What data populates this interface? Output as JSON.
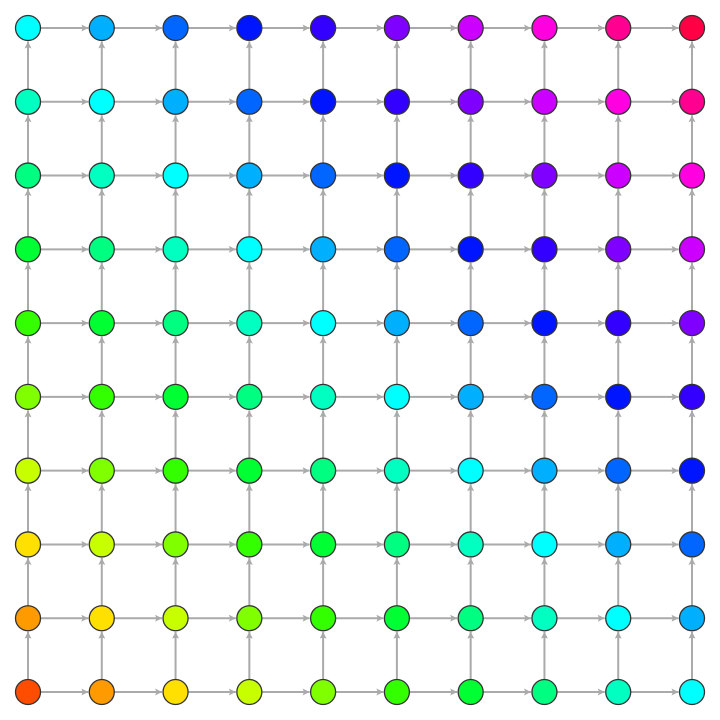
{
  "grid": {
    "rows": 10,
    "cols": 10,
    "colors": [
      "#ff4d00",
      "#ff9a00",
      "#ffe000",
      "#c8ff00",
      "#80ff00",
      "#33ff00",
      "#00ff33",
      "#00ff80",
      "#00ffc0",
      "#00ffff",
      "#00b0ff",
      "#0066ff",
      "#0015ff",
      "#3300ff",
      "#8000ff",
      "#cc00ff",
      "#ff00e0",
      "#ff0090",
      "#ff0044"
    ],
    "edge_color": "#aaaaaa",
    "node_stroke": "#333333"
  }
}
